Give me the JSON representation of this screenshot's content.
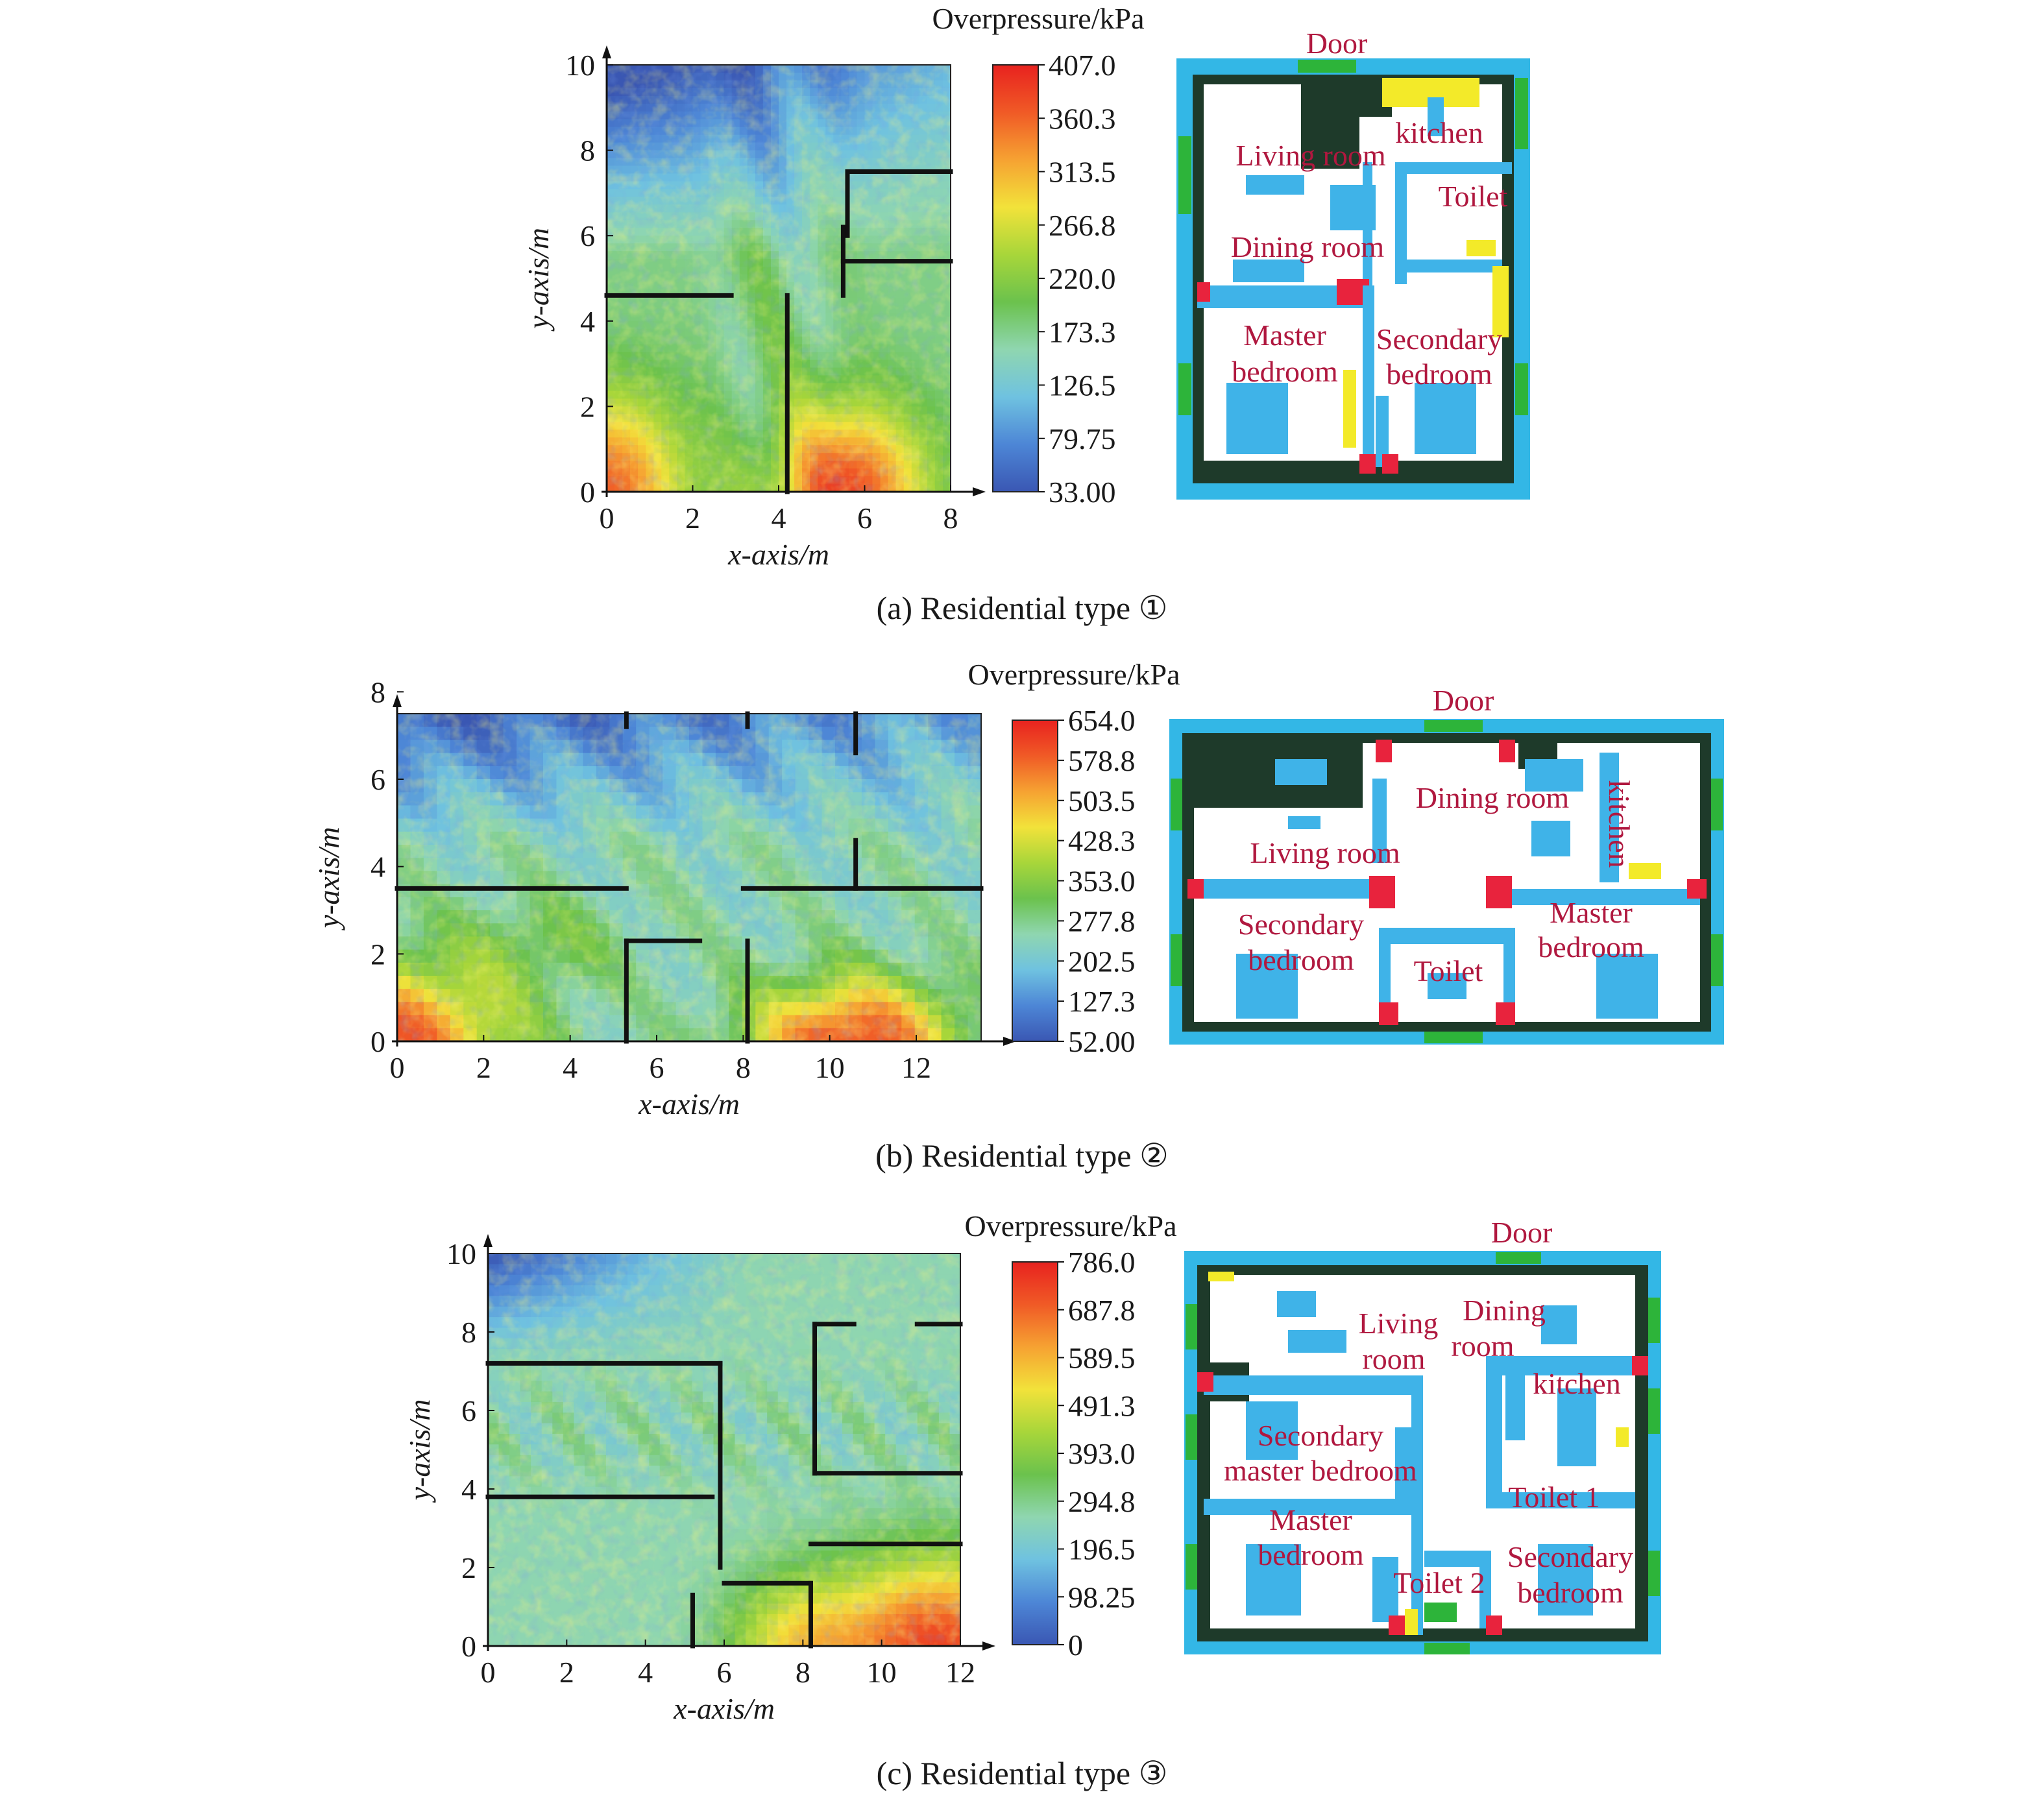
{
  "colors": {
    "scale": [
      "#3a57b3",
      "#4d86d6",
      "#6fc2e0",
      "#8fd6b0",
      "#6bc24d",
      "#a8d63a",
      "#f2e23a",
      "#f6a232",
      "#f05a26",
      "#e8221f"
    ],
    "wall": "#111111",
    "plan_outer": "#33b7e6",
    "plan_inner": "#1e3a2a",
    "plan_floor": "#ffffff",
    "plan_furniture": "#3fb3e8",
    "plan_red": "#e8233d",
    "plan_yellow": "#f3ea29",
    "plan_green": "#2db43a",
    "room_label": "#b0183f"
  },
  "chart_data": [
    {
      "type": "heatmap",
      "caption": "(a) Residential type ①",
      "xlabel": "x-axis/m",
      "ylabel": "y-axis/m",
      "xlim": [
        0,
        8
      ],
      "ylim": [
        0,
        10
      ],
      "xticks": [
        0,
        2,
        4,
        6,
        8
      ],
      "yticks": [
        0,
        2,
        4,
        6,
        8,
        10
      ],
      "colorbar_title": "Overpressure/kPa",
      "colorbar_ticks": [
        "407.0",
        "360.3",
        "313.5",
        "266.8",
        "220.0",
        "173.3",
        "126.5",
        "79.75",
        "33.00"
      ],
      "range": [
        33.0,
        407.0
      ],
      "walls": [
        [
          [
            0,
            4.6
          ],
          [
            2.9,
            4.6
          ]
        ],
        [
          [
            4.2,
            0
          ],
          [
            4.2,
            4.6
          ]
        ],
        [
          [
            5.6,
            7.5
          ],
          [
            8,
            7.5
          ]
        ],
        [
          [
            5.6,
            6.0
          ],
          [
            5.6,
            7.5
          ]
        ],
        [
          [
            5.5,
            4.6
          ],
          [
            5.5,
            6.2
          ]
        ],
        [
          [
            5.5,
            5.4
          ],
          [
            8,
            5.4
          ]
        ]
      ],
      "floor_plan": {
        "labels": [
          "Door",
          "kitchen",
          "Living room",
          "Toilet",
          "Dining room",
          "Master",
          "bedroom",
          "Secondary",
          "bedroom"
        ]
      }
    },
    {
      "type": "heatmap",
      "caption": "(b) Residential type ②",
      "xlabel": "x-axis/m",
      "ylabel": "y-axis/m",
      "xlim": [
        0,
        13.5
      ],
      "ylim": [
        0,
        7.5
      ],
      "xticks": [
        0,
        2,
        4,
        6,
        8,
        10,
        12
      ],
      "yticks": [
        0,
        2,
        4,
        6,
        8
      ],
      "colorbar_title": "Overpressure/kPa",
      "colorbar_ticks": [
        "654.0",
        "578.8",
        "503.5",
        "428.3",
        "353.0",
        "277.8",
        "202.5",
        "127.3",
        "52.00"
      ],
      "range": [
        52.0,
        654.0
      ],
      "walls": [
        [
          [
            0,
            3.5
          ],
          [
            5.3,
            3.5
          ]
        ],
        [
          [
            8,
            3.5
          ],
          [
            13.5,
            3.5
          ]
        ],
        [
          [
            5.3,
            0
          ],
          [
            5.3,
            2.3
          ]
        ],
        [
          [
            5.3,
            2.3
          ],
          [
            7.0,
            2.3
          ]
        ],
        [
          [
            8.1,
            0
          ],
          [
            8.1,
            2.3
          ]
        ],
        [
          [
            10.6,
            3.5
          ],
          [
            10.6,
            4.6
          ]
        ],
        [
          [
            10.6,
            6.6
          ],
          [
            10.6,
            7.5
          ]
        ],
        [
          [
            5.3,
            7.2
          ],
          [
            5.3,
            7.5
          ]
        ],
        [
          [
            8.1,
            7.2
          ],
          [
            8.1,
            7.5
          ]
        ]
      ],
      "floor_plan": {
        "labels": [
          "Door",
          "kitchen",
          "Dining room",
          "Living room",
          "Secondary",
          "bedroom",
          "Master",
          "bedroom",
          "Toilet"
        ]
      }
    },
    {
      "type": "heatmap",
      "caption": "(c) Residential type ③",
      "xlabel": "x-axis/m",
      "ylabel": "y-axis/m",
      "xlim": [
        0,
        12
      ],
      "ylim": [
        0,
        10
      ],
      "xticks": [
        0,
        2,
        4,
        6,
        8,
        10,
        12
      ],
      "yticks": [
        0,
        2,
        4,
        6,
        8,
        10
      ],
      "colorbar_title": "Overpressure/kPa",
      "colorbar_ticks": [
        "786.0",
        "687.8",
        "589.5",
        "491.3",
        "393.0",
        "294.8",
        "196.5",
        "98.25",
        "0"
      ],
      "range": [
        0,
        786.0
      ],
      "walls": [
        [
          [
            0,
            7.2
          ],
          [
            5.9,
            7.2
          ]
        ],
        [
          [
            0,
            3.8
          ],
          [
            5.7,
            3.8
          ]
        ],
        [
          [
            5.9,
            2.0
          ],
          [
            5.9,
            7.2
          ]
        ],
        [
          [
            8.3,
            4.4
          ],
          [
            8.3,
            8.2
          ]
        ],
        [
          [
            8.3,
            8.2
          ],
          [
            9.3,
            8.2
          ]
        ],
        [
          [
            10.9,
            8.2
          ],
          [
            12,
            8.2
          ]
        ],
        [
          [
            8.3,
            4.4
          ],
          [
            12,
            4.4
          ]
        ],
        [
          [
            8.2,
            2.6
          ],
          [
            12,
            2.6
          ]
        ],
        [
          [
            6.0,
            1.6
          ],
          [
            8.2,
            1.6
          ]
        ],
        [
          [
            8.2,
            0
          ],
          [
            8.2,
            1.6
          ]
        ],
        [
          [
            5.2,
            0
          ],
          [
            5.2,
            1.3
          ]
        ]
      ],
      "floor_plan": {
        "labels": [
          "Door",
          "Living",
          "room",
          "Dining",
          "room",
          "kitchen",
          "Secondary",
          "master bedroom",
          "Toilet 1",
          "Master",
          "bedroom",
          "Toilet 2",
          "Secondary",
          "bedroom"
        ]
      }
    }
  ]
}
